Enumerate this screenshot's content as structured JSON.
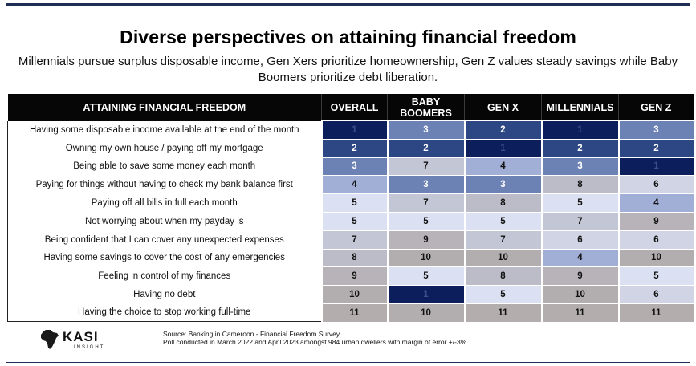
{
  "header": {
    "title": "Diverse perspectives on attaining financial freedom",
    "subtitle": "Millennials pursue surplus disposable income, Gen Xers prioritize homeownership, Gen Z values steady savings while Baby Boomers prioritize debt liberation."
  },
  "chart_data": {
    "type": "table",
    "title": "Diverse perspectives on attaining financial freedom",
    "row_header": "ATTAINING FINANCIAL FREEDOM",
    "columns": [
      "OVERALL",
      "BABY BOOMERS",
      "GEN X",
      "MILLENNIALS",
      "GEN Z"
    ],
    "rows": [
      {
        "label": "Having some disposable income available at the end of the month",
        "ranks": [
          1,
          3,
          2,
          1,
          3
        ]
      },
      {
        "label": "Owning my own house / paying off my mortgage",
        "ranks": [
          2,
          2,
          1,
          2,
          2
        ]
      },
      {
        "label": "Being able to save some money each month",
        "ranks": [
          3,
          7,
          4,
          3,
          1
        ]
      },
      {
        "label": "Paying for things without having to check my bank balance first",
        "ranks": [
          4,
          3,
          3,
          8,
          6
        ]
      },
      {
        "label": "Paying off all bills in full each month",
        "ranks": [
          5,
          7,
          8,
          5,
          4
        ]
      },
      {
        "label": "Not worrying about when my payday is",
        "ranks": [
          5,
          5,
          5,
          7,
          9
        ]
      },
      {
        "label": "Being confident that I can cover any unexpected expenses",
        "ranks": [
          7,
          9,
          7,
          6,
          6
        ]
      },
      {
        "label": "Having some savings to cover the cost of any emergencies",
        "ranks": [
          8,
          10,
          10,
          4,
          10
        ]
      },
      {
        "label": "Feeling in control of my finances",
        "ranks": [
          9,
          5,
          8,
          9,
          5
        ]
      },
      {
        "label": "Having no debt",
        "ranks": [
          10,
          1,
          5,
          10,
          6
        ]
      },
      {
        "label": "Having the choice to stop working full-time",
        "ranks": [
          11,
          10,
          11,
          11,
          11
        ]
      }
    ],
    "color_scale": {
      "1": "#0c1e5c",
      "2": "#2d4785",
      "3": "#6c81b4",
      "4": "#a1afd6",
      "5": "#dbe1f2",
      "6": "#d0d4e4",
      "7": "#c3c6d4",
      "8": "#bcbcc8",
      "9": "#b7b3b8",
      "10": "#b2aeb0",
      "11": "#b3aead"
    }
  },
  "footer": {
    "logo_text": "KASI",
    "logo_sub": "INSIGHT",
    "source_line1": "Source: Banking in Cameroon - Financial Freedom Survey",
    "source_line2": "Poll conducted in March 2022 and April  2023 amongst 984 urban dwellers with margin of error +/-3%"
  }
}
